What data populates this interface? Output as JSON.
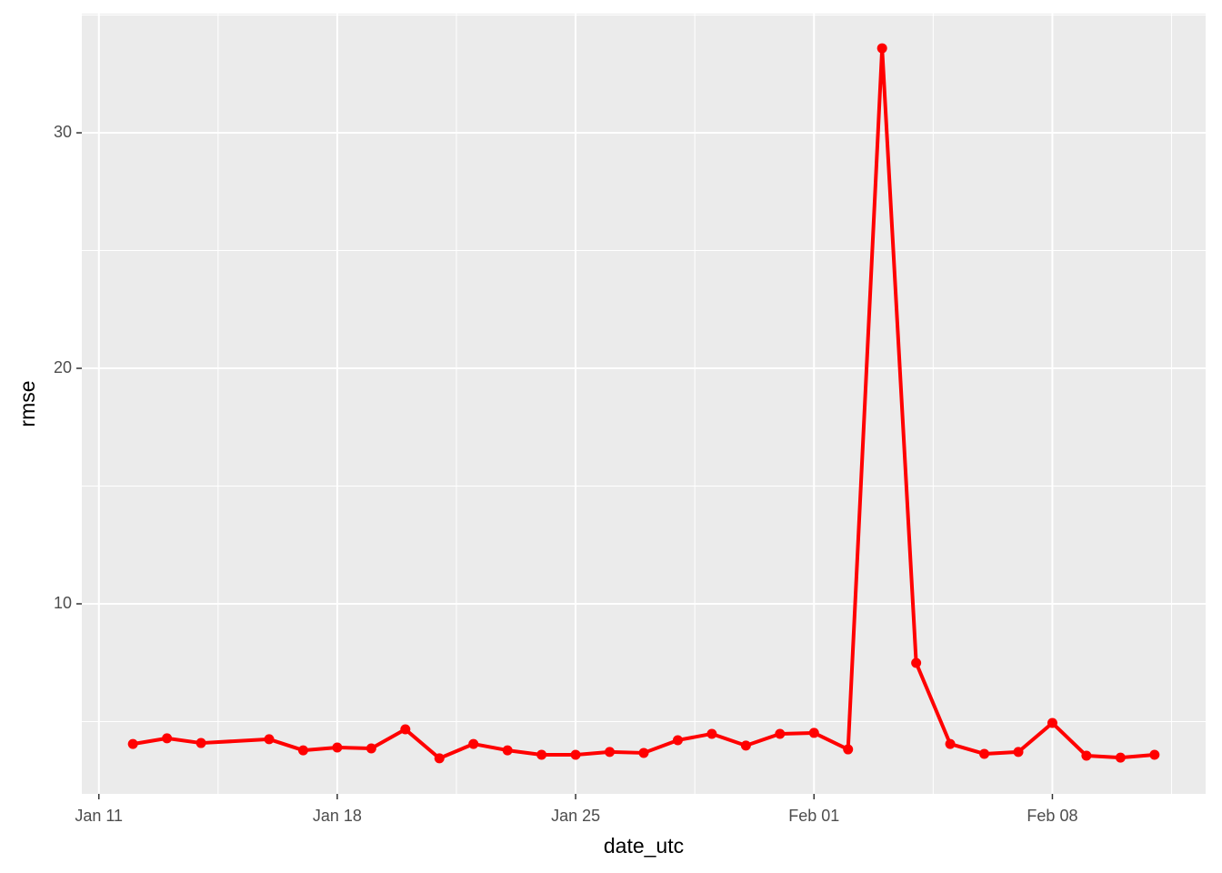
{
  "chart_data": {
    "type": "line",
    "x_label": "date_utc",
    "y_label": "rmse",
    "x": [
      "Jan 12",
      "Jan 13",
      "Jan 14",
      "Jan 16",
      "Jan 17",
      "Jan 18",
      "Jan 19",
      "Jan 20",
      "Jan 21",
      "Jan 22",
      "Jan 23",
      "Jan 24",
      "Jan 25",
      "Jan 26",
      "Jan 27",
      "Jan 28",
      "Jan 29",
      "Jan 30",
      "Jan 31",
      "Feb 01",
      "Feb 02",
      "Feb 03",
      "Feb 04",
      "Feb 05",
      "Feb 06",
      "Feb 07",
      "Feb 08",
      "Feb 09",
      "Feb 10",
      "Feb 11"
    ],
    "series": [
      {
        "color": "#ff0000",
        "values": [
          4.05,
          4.29,
          4.09,
          4.25,
          3.78,
          3.9,
          3.86,
          4.67,
          3.44,
          4.05,
          3.78,
          3.59,
          3.59,
          3.71,
          3.67,
          4.21,
          4.48,
          3.98,
          4.48,
          4.52,
          3.82,
          33.59,
          7.49,
          4.05,
          3.63,
          3.71,
          4.94,
          3.55,
          3.47,
          3.59
        ]
      }
    ],
    "xticks": [
      "Jan 11",
      "Jan 18",
      "Jan 25",
      "Feb 01",
      "Feb 08"
    ],
    "ylim": [
      1.93,
      35.06
    ],
    "yticks": [
      10,
      20,
      30
    ],
    "grid": true
  }
}
